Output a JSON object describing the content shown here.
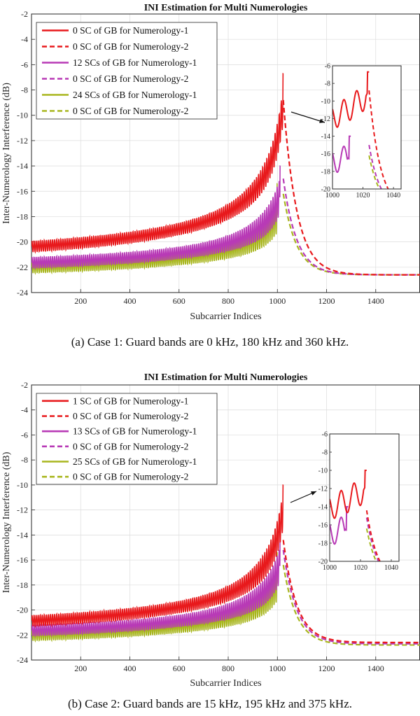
{
  "chart_data": [
    {
      "type": "line",
      "title": "INI Estimation for Multi Numerologies",
      "xlabel": "Subcarrier Indices",
      "ylabel": "Inter-Numerology Interference (dB)",
      "xlim": [
        0,
        1580
      ],
      "ylim": [
        -24,
        -2
      ],
      "xticks": [
        200,
        400,
        600,
        800,
        1000,
        1200,
        1400
      ],
      "yticks": [
        -24,
        -22,
        -20,
        -18,
        -16,
        -14,
        -12,
        -10,
        -8,
        -6,
        -4,
        -2
      ],
      "grid": true,
      "legend_position": "top-left",
      "caption": "(a)  Case 1: Guard bands are 0 kHz, 180 kHz and 360 kHz.",
      "series": [
        {
          "name": "0 SC of GB for Numerology-1",
          "color": "#e8191c",
          "style": "solid",
          "x_range": [
            0,
            1024
          ],
          "start": -22.8,
          "peak": -6.7
        },
        {
          "name": "0 SC of GB for Numerology-2",
          "color": "#e8191c",
          "style": "dashed",
          "x_range": [
            1024,
            1580
          ],
          "peak": -8.8,
          "end": -22.6
        },
        {
          "name": "12 SCs of GB for Numerology-1",
          "color": "#b83ab6",
          "style": "solid",
          "x_range": [
            0,
            1012
          ],
          "start": -23.0,
          "peak": -14.0
        },
        {
          "name": "0 SC of GB for Numerology-2",
          "color": "#b83ab6",
          "style": "dashed",
          "x_range": [
            1024,
            1580
          ],
          "peak": -15.0,
          "end": -22.6
        },
        {
          "name": "24 SCs of GB for Numerology-1",
          "color": "#a8b61e",
          "style": "solid",
          "x_range": [
            0,
            1000
          ],
          "start": -23.2,
          "peak": -15.4
        },
        {
          "name": "0 SC of GB for Numerology-2",
          "color": "#a8b61e",
          "style": "dashed",
          "x_range": [
            1024,
            1580
          ],
          "peak": -16.2,
          "end": -22.6
        }
      ],
      "inset": {
        "xlim": [
          1000,
          1045
        ],
        "ylim": [
          -20,
          -6
        ],
        "xticks": [
          1000,
          1020,
          1040
        ],
        "yticks": [
          -20,
          -18,
          -16,
          -14,
          -12,
          -10,
          -8,
          -6
        ],
        "xtick_labels": [
          "1000",
          "1020",
          "1040"
        ],
        "ytick_labels": [
          "-20",
          "-18",
          "-16",
          "-14",
          "-12",
          "-10",
          "-8",
          "-6"
        ]
      }
    },
    {
      "type": "line",
      "title": "INI Estimation for Multi Numerologies",
      "xlabel": "Subcarrier Indices",
      "ylabel": "Inter-Numerology Interference (dB)",
      "xlim": [
        0,
        1580
      ],
      "ylim": [
        -24,
        -2
      ],
      "xticks": [
        200,
        400,
        600,
        800,
        1000,
        1200,
        1400
      ],
      "yticks": [
        -24,
        -22,
        -20,
        -18,
        -16,
        -14,
        -12,
        -10,
        -8,
        -6,
        -4,
        -2
      ],
      "grid": true,
      "legend_position": "top-left",
      "caption": "(b)  Case 2: Guard bands are 15 kHz, 195 kHz and 375 kHz.",
      "series": [
        {
          "name": "1 SC of GB for Numerology-1",
          "color": "#e8191c",
          "style": "solid",
          "x_range": [
            0,
            1024
          ],
          "start": -22.8,
          "peak": -10.0
        },
        {
          "name": "0 SC of GB for Numerology-2",
          "color": "#e8191c",
          "style": "dashed",
          "x_range": [
            1024,
            1580
          ],
          "peak": -14.4,
          "end": -22.6
        },
        {
          "name": "13 SCs of GB for Numerology-1",
          "color": "#b83ab6",
          "style": "solid",
          "x_range": [
            0,
            1012
          ],
          "start": -23.0,
          "peak": -14.0
        },
        {
          "name": "0 SC of GB for Numerology-2",
          "color": "#b83ab6",
          "style": "dashed",
          "x_range": [
            1024,
            1580
          ],
          "peak": -15.2,
          "end": -22.7
        },
        {
          "name": "25 SCs of GB for Numerology-1",
          "color": "#a8b61e",
          "style": "solid",
          "x_range": [
            0,
            1000
          ],
          "start": -23.2,
          "peak": -15.4
        },
        {
          "name": "0 SC of GB for Numerology-2",
          "color": "#a8b61e",
          "style": "dashed",
          "x_range": [
            1024,
            1580
          ],
          "peak": -16.4,
          "end": -22.8
        }
      ],
      "inset": {
        "xlim": [
          1000,
          1045
        ],
        "ylim": [
          -20,
          -6
        ],
        "xticks": [
          1000,
          1020,
          1040
        ],
        "yticks": [
          -20,
          -18,
          -16,
          -14,
          -12,
          -10,
          -8,
          -6
        ],
        "xtick_labels": [
          "1000",
          "1020",
          "1040"
        ],
        "ytick_labels": [
          "-20",
          "-18",
          "-16",
          "-14",
          "-12",
          "-10",
          "-8",
          "-6"
        ]
      }
    }
  ]
}
